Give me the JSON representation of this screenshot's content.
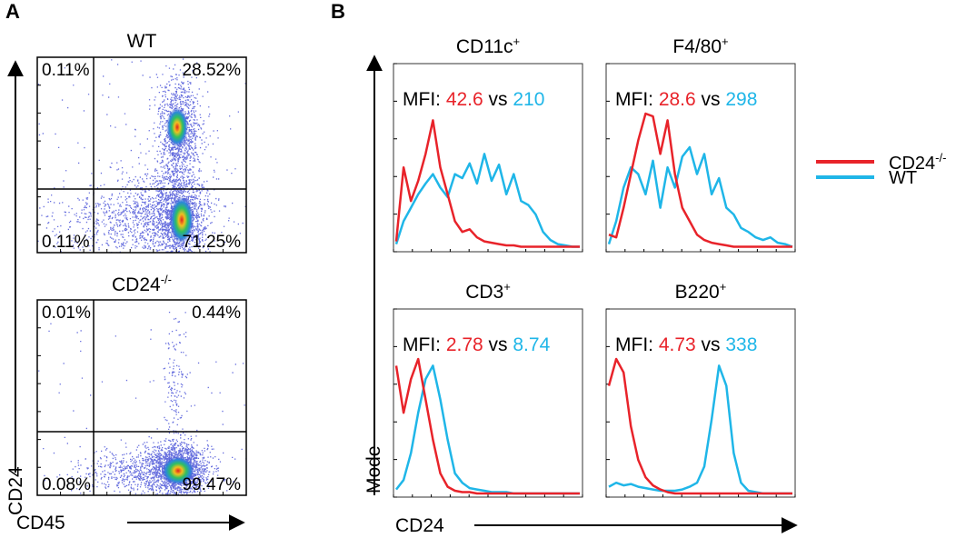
{
  "chart_data": [
    {
      "type": "scatter",
      "panel_label": "A",
      "xlabel": "CD45",
      "ylabel": "CD24",
      "plots": [
        {
          "title": "WT",
          "quadrants": {
            "upper_left": "0.11%",
            "upper_right": "28.52%",
            "lower_left": "0.11%",
            "lower_right": "71.25%"
          }
        },
        {
          "title": "CD24-/-",
          "title_base": "CD24",
          "title_sup": "-/-",
          "quadrants": {
            "upper_left": "0.01%",
            "upper_right": "0.44%",
            "lower_left": "0.08%",
            "lower_right": "99.47%"
          }
        }
      ]
    },
    {
      "type": "line",
      "panel_label": "B",
      "xlabel": "CD24",
      "ylabel": "Mode",
      "series_names": [
        "CD24-/-",
        "WT"
      ],
      "legend": [
        {
          "base": "CD24",
          "sup": "-/-",
          "color": "#e8232a"
        },
        {
          "base": "WT",
          "sup": "",
          "color": "#1fb6e8"
        }
      ],
      "mfi_prefix": "MFI:",
      "mfi_sep": "vs",
      "panels": [
        {
          "title_base": "CD11c",
          "title_sup": "+",
          "mfi_ko": "42.6",
          "mfi_wt": "210",
          "x": [
            0,
            4,
            8,
            12,
            16,
            20,
            24,
            28,
            32,
            36,
            40,
            44,
            48,
            52,
            56,
            60,
            64,
            68,
            72,
            76,
            80,
            84,
            88,
            92,
            96,
            100
          ],
          "ko": [
            5,
            60,
            35,
            50,
            70,
            95,
            60,
            40,
            20,
            12,
            14,
            8,
            5,
            4,
            3,
            2,
            2,
            1,
            1,
            1,
            1,
            1,
            1,
            1,
            1,
            1
          ],
          "wt": [
            3,
            20,
            30,
            40,
            48,
            55,
            45,
            38,
            55,
            52,
            63,
            48,
            70,
            50,
            62,
            40,
            55,
            35,
            32,
            25,
            12,
            6,
            3,
            2,
            1,
            1
          ]
        },
        {
          "title_base": "F4/80",
          "title_sup": "+",
          "mfi_ko": "28.6",
          "mfi_wt": "298",
          "x": [
            0,
            4,
            8,
            12,
            16,
            20,
            24,
            28,
            32,
            36,
            40,
            44,
            48,
            52,
            56,
            60,
            64,
            68,
            72,
            76,
            80,
            84,
            88,
            92,
            96,
            100
          ],
          "ko": [
            10,
            8,
            30,
            55,
            80,
            100,
            98,
            70,
            95,
            55,
            30,
            20,
            10,
            6,
            4,
            3,
            2,
            1,
            1,
            1,
            1,
            1,
            1,
            1,
            1,
            1
          ],
          "wt": [
            3,
            20,
            45,
            60,
            55,
            40,
            65,
            30,
            60,
            45,
            68,
            75,
            55,
            70,
            40,
            52,
            30,
            25,
            15,
            12,
            8,
            6,
            8,
            4,
            3,
            1
          ]
        },
        {
          "title_base": "CD3",
          "title_sup": "+",
          "mfi_ko": "2.78",
          "mfi_wt": "8.74",
          "x": [
            0,
            4,
            8,
            12,
            16,
            20,
            24,
            28,
            32,
            36,
            40,
            44,
            48,
            52,
            56,
            60,
            64,
            68,
            72,
            76,
            80,
            84,
            88,
            92,
            96,
            100
          ],
          "ko": [
            95,
            60,
            85,
            100,
            70,
            40,
            15,
            5,
            2,
            1,
            1,
            0,
            0,
            0,
            0,
            0,
            0,
            0,
            0,
            0,
            0,
            0,
            0,
            0,
            0,
            0
          ],
          "wt": [
            3,
            10,
            30,
            60,
            85,
            95,
            70,
            40,
            15,
            8,
            4,
            3,
            2,
            1,
            1,
            1,
            0,
            0,
            0,
            0,
            0,
            0,
            0,
            0,
            0,
            0
          ]
        },
        {
          "title_base": "B220",
          "title_sup": "+",
          "mfi_ko": "4.73",
          "mfi_wt": "338",
          "x": [
            0,
            4,
            8,
            12,
            16,
            20,
            24,
            28,
            32,
            36,
            40,
            44,
            48,
            52,
            56,
            60,
            64,
            68,
            72,
            76,
            80,
            84,
            88,
            92,
            96,
            100
          ],
          "ko": [
            80,
            100,
            90,
            50,
            25,
            12,
            6,
            3,
            1,
            0,
            0,
            0,
            0,
            0,
            0,
            0,
            0,
            0,
            0,
            0,
            0,
            0,
            0,
            0,
            0,
            0
          ],
          "wt": [
            5,
            8,
            6,
            7,
            5,
            4,
            3,
            2,
            2,
            2,
            3,
            5,
            8,
            20,
            55,
            95,
            80,
            30,
            8,
            2,
            1,
            0,
            0,
            0,
            0,
            0
          ]
        }
      ]
    }
  ],
  "colors": {
    "ko": "#e8232a",
    "wt": "#1fb6e8",
    "axis": "#000000",
    "dot": "#4b55d8"
  }
}
